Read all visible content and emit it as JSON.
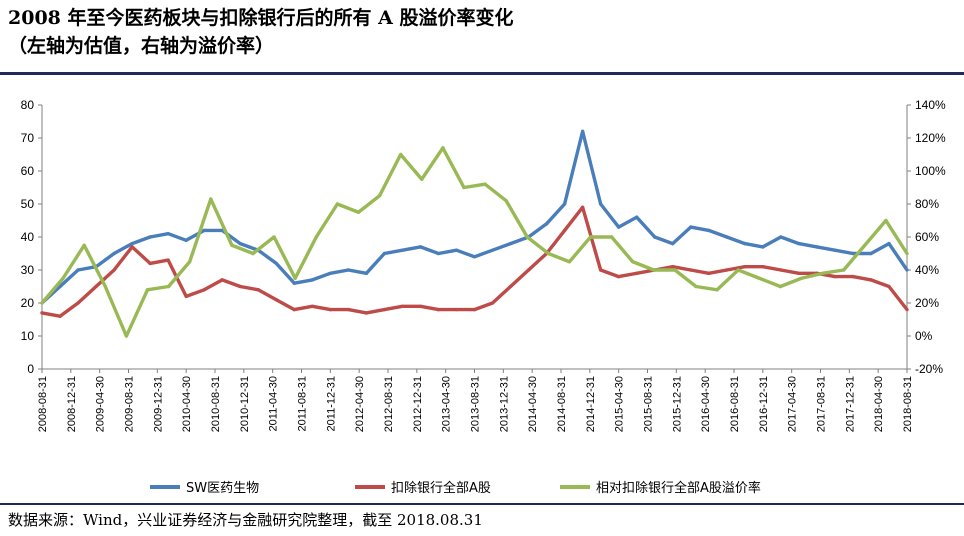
{
  "title": {
    "line1": "2008 年至今医药板块与扣除银行后的所有 A 股溢价率变化",
    "line2": "（左轴为估值，右轴为溢价率）"
  },
  "source": "数据来源：Wind，兴业证券经济与金融研究院整理，截至 2018.08.31",
  "colors": {
    "blue": "#4a7ebb",
    "red": "#be4b48",
    "green": "#98b954",
    "rule": "#1f2a5c"
  },
  "chart_data": {
    "type": "line",
    "left_axis": {
      "min": 0,
      "max": 80,
      "step": 10,
      "ticks": [
        "0",
        "10",
        "20",
        "30",
        "40",
        "50",
        "60",
        "70",
        "80"
      ]
    },
    "right_axis": {
      "min": -20,
      "max": 140,
      "step": 20,
      "ticks": [
        "-20%",
        "0%",
        "20%",
        "40%",
        "60%",
        "80%",
        "100%",
        "120%",
        "140%"
      ]
    },
    "x_ticks": [
      "2008-08-31",
      "2008-12-31",
      "2009-04-30",
      "2009-08-31",
      "2009-12-31",
      "2010-04-30",
      "2010-08-31",
      "2010-12-31",
      "2011-04-30",
      "2011-08-31",
      "2011-12-31",
      "2012-04-30",
      "2012-08-31",
      "2012-12-31",
      "2013-04-30",
      "2013-08-31",
      "2013-12-31",
      "2014-04-30",
      "2014-08-31",
      "2014-12-31",
      "2015-04-30",
      "2015-08-31",
      "2015-12-31",
      "2016-04-30",
      "2016-08-31",
      "2016-12-31",
      "2017-04-30",
      "2017-08-31",
      "2017-12-31",
      "2018-04-30",
      "2018-08-31"
    ],
    "series": [
      {
        "name": "SW医药生物",
        "axis": "left",
        "color": "#4a7ebb",
        "values": [
          20,
          25,
          30,
          31,
          35,
          38,
          40,
          41,
          39,
          42,
          42,
          38,
          36,
          32,
          26,
          27,
          29,
          30,
          29,
          35,
          36,
          37,
          35,
          36,
          34,
          36,
          38,
          40,
          44,
          50,
          72,
          50,
          43,
          46,
          40,
          38,
          43,
          42,
          40,
          38,
          37,
          40,
          38,
          37,
          36,
          35,
          35,
          38,
          30
        ]
      },
      {
        "name": "扣除银行全部A股",
        "axis": "left",
        "color": "#be4b48",
        "values": [
          17,
          16,
          20,
          25,
          30,
          37,
          32,
          33,
          22,
          24,
          27,
          25,
          24,
          21,
          18,
          19,
          18,
          18,
          17,
          18,
          19,
          19,
          18,
          18,
          18,
          20,
          25,
          30,
          35,
          42,
          49,
          30,
          28,
          29,
          30,
          31,
          30,
          29,
          30,
          31,
          31,
          30,
          29,
          29,
          28,
          28,
          27,
          25,
          18
        ]
      },
      {
        "name": "相对扣除银行全部A股溢价率",
        "axis": "right",
        "color": "#98b954",
        "values": [
          20,
          35,
          55,
          30,
          0,
          28,
          30,
          45,
          83,
          55,
          50,
          60,
          35,
          60,
          80,
          75,
          85,
          110,
          95,
          114,
          90,
          92,
          82,
          60,
          50,
          45,
          60,
          60,
          45,
          40,
          40,
          30,
          28,
          40,
          35,
          30,
          35,
          38,
          40,
          55,
          70,
          50
        ]
      }
    ]
  },
  "legend": [
    "SW医药生物",
    "扣除银行全部A股",
    "相对扣除银行全部A股溢价率"
  ]
}
